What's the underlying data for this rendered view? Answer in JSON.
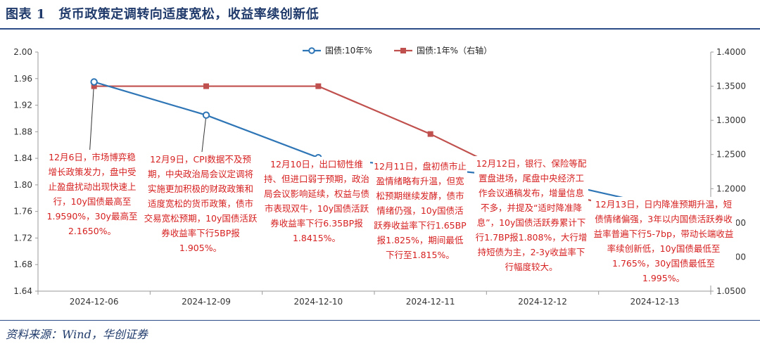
{
  "header": {
    "title": "图表 1　货币政策定调转向适度宽松，收益率续创新低"
  },
  "footer": {
    "source": "资料来源：Wind，华创证券"
  },
  "colors": {
    "series_10y": "#2e75b6",
    "series_1y": "#c0504d",
    "axis": "#9a9a9a",
    "annotation": "#d62020"
  },
  "chart_data": {
    "type": "line",
    "categories": [
      "2024-12-06",
      "2024-12-09",
      "2024-12-10",
      "2024-12-11",
      "2024-12-12",
      "2024-12-13"
    ],
    "series": [
      {
        "name": "国债:10年%",
        "axis": "left",
        "marker": "circle",
        "values": [
          1.955,
          1.905,
          1.841,
          1.825,
          1.808,
          1.77
        ]
      },
      {
        "name": "国债:1年%（右轴）",
        "axis": "right",
        "marker": "square",
        "values": [
          1.35,
          1.35,
          1.35,
          1.28,
          1.2,
          1.16
        ]
      }
    ],
    "y_left": {
      "min": 1.64,
      "max": 2.0,
      "ticks": [
        "2.00",
        "1.96",
        "1.92",
        "1.88",
        "1.84",
        "1.80",
        "1.76",
        "1.72",
        "1.68",
        "1.64"
      ]
    },
    "y_right": {
      "min": 1.05,
      "max": 1.4,
      "ticks": [
        "1.4000",
        "1.3500",
        "1.3000",
        "1.2500",
        "1.2000",
        "1.1500",
        "1.1000",
        "1.0500"
      ]
    },
    "legend_position": "top-center",
    "grid": false,
    "annotations": [
      {
        "category": "2024-12-06",
        "text": "12月6日，市场博弈稳增长政策发力，盘中受止盈盘扰动出现快速上行，10y国债最高至1.9590%，30y最高至2.1650%。"
      },
      {
        "category": "2024-12-09",
        "text": "12月9日，CPI数据不及预期，中央政治局会议定调将实施更加积极的财政政策和适度宽松的货币政策，债市交易宽松预期，10y国债活跃券收益率下行5BP报1.905%。"
      },
      {
        "category": "2024-12-10",
        "text": "12月10日，出口韧性维持、但进口弱于预期，政治局会议影响延续，权益与债市表现双牛，10y国债活跃券收益率下行6.35BP报1.8415%。"
      },
      {
        "category": "2024-12-11",
        "text": "12月11日，盘初债市止盈情绪略有升温，但宽松预期继续发酵，债市情绪仍强，10y国债活跃券收益率下行1.65BP报1.825%，期间最低下行至1.815%。"
      },
      {
        "category": "2024-12-12",
        "text": "12月12日，银行、保险等配置盘进场，尾盘中央经济工作会议通稿发布，增量信息不多，并提及“适时降准降息”，10y国债活跃券累计下行1.7BP报1.808%，大行增持短债为主，2-3y收益率下行幅度较大。"
      },
      {
        "category": "2024-12-13",
        "text": "12月13日，日内降准预期升温，短债情绪偏强，3年以内国债活跃券收益率普遍下行5-7bp，带动长端收益率续创新低，10y国债最低至1.765%，30y国债最低至1.995%。"
      }
    ]
  }
}
